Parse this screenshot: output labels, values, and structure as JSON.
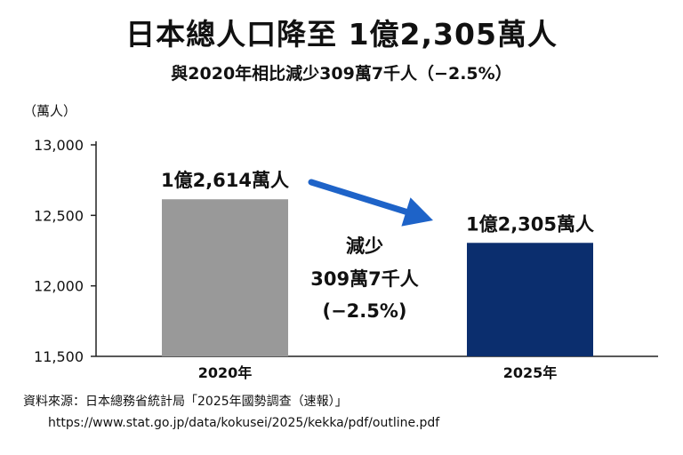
{
  "title": "日本總人口降至 1億2,305萬人",
  "subtitle": "與2020年相比減少309萬7千人（−2.5%）",
  "source": {
    "line1": "資料來源：日本總務省統計局「2025年國勢調查（速報）」",
    "line2": "https://www.stat.go.jp/data/kokusei/2025/kekka/pdf/outline.pdf"
  },
  "colors": {
    "bar_2020": "#999999",
    "bar_2025": "#0b2e6e",
    "arrow": "#1e63c8"
  },
  "chart_data": {
    "type": "bar",
    "title": "日本總人口降至 1億2,305萬人",
    "ylabel": "（萬人）",
    "categories": [
      "2020年",
      "2025年"
    ],
    "values": [
      12614,
      12305
    ],
    "data_labels": [
      "1億2,614萬人",
      "1億2,305萬人"
    ],
    "ylim": [
      11500,
      13000
    ],
    "yticks": [
      11500,
      12000,
      12500,
      13000
    ],
    "ytick_labels": [
      "11,500",
      "12,000",
      "12,500",
      "13,000"
    ],
    "grid": false,
    "annotation": {
      "lines": [
        "減少",
        "309萬7千人",
        "(−2.5%)"
      ]
    }
  }
}
